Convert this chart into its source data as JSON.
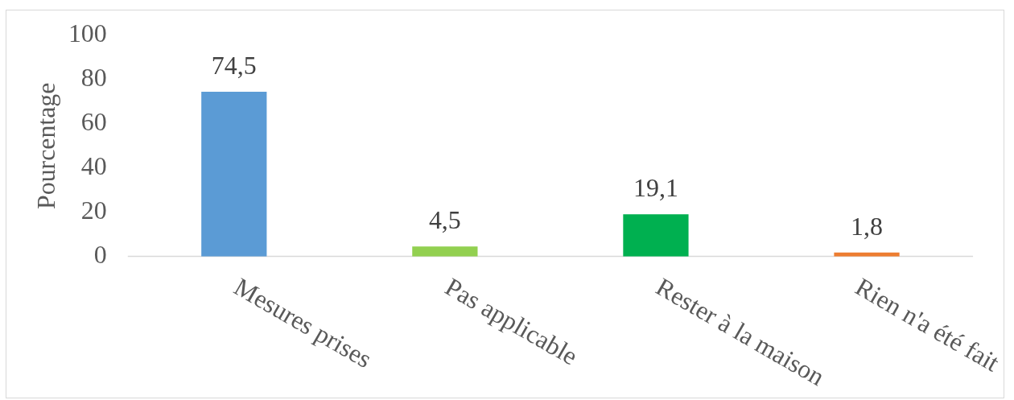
{
  "chart_data": {
    "type": "bar",
    "categories": [
      "Mesures prises",
      "Pas applicable",
      "Rester à la maison",
      "Rien n'a été fait"
    ],
    "values": [
      74.5,
      4.5,
      19.1,
      1.8
    ],
    "colors": [
      "#5b9bd5",
      "#92d050",
      "#00b050",
      "#ed7d31"
    ],
    "value_labels": [
      "74,5",
      "4,5",
      "19,1",
      "1,8"
    ],
    "ylabel": "Pourcentage",
    "ylim": [
      0,
      100
    ],
    "yticks": [
      0,
      20,
      40,
      60,
      80,
      100
    ]
  }
}
